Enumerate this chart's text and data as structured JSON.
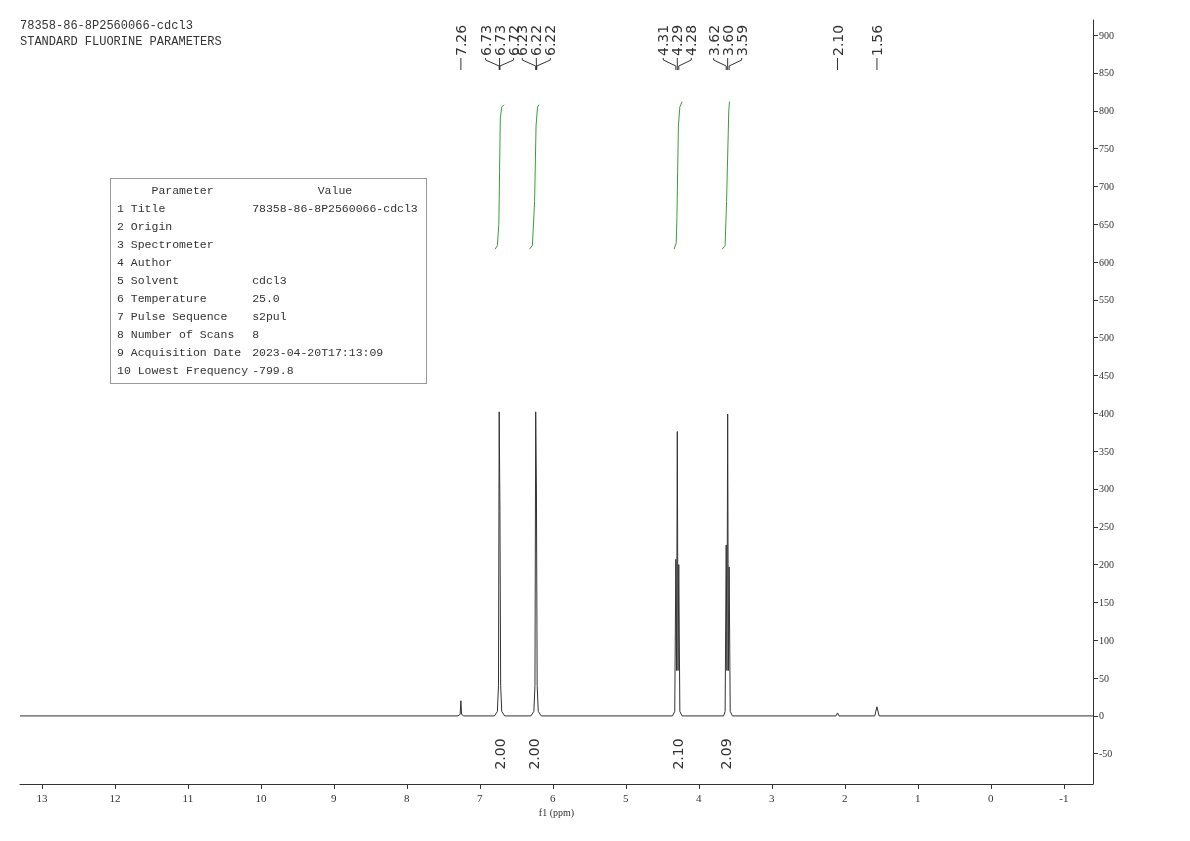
{
  "chart_data": [
    {
      "type": "line",
      "title": "78358-86-8P2560066-cdcl3",
      "subtitle": "STANDARD FLUORINE PARAMETERS",
      "xlabel": "f1 (ppm)",
      "xlim": [
        13.3,
        -1.4
      ],
      "xticks": [
        13,
        12,
        11,
        10,
        9,
        8,
        7,
        6,
        5,
        4,
        3,
        2,
        1,
        0,
        -1
      ],
      "ylim": [
        -90,
        920
      ],
      "yticks": [
        -50,
        0,
        50,
        100,
        150,
        200,
        250,
        300,
        350,
        400,
        450,
        500,
        550,
        600,
        650,
        700,
        750,
        800,
        850,
        900
      ],
      "marker": "none",
      "series": [
        {
          "color": "#333333",
          "x": [
            13.3,
            7.3,
            7.27,
            7.26,
            7.25,
            7.22,
            6.8,
            6.76,
            6.745,
            6.735,
            6.725,
            6.715,
            6.7,
            6.66,
            6.3,
            6.26,
            6.245,
            6.235,
            6.225,
            6.215,
            6.2,
            6.16,
            4.36,
            4.33,
            4.315,
            4.305,
            4.295,
            4.285,
            4.275,
            4.26,
            4.23,
            3.66,
            3.64,
            3.625,
            3.615,
            3.605,
            3.595,
            3.585,
            3.57,
            3.54,
            2.12,
            2.1,
            2.08,
            1.59,
            1.56,
            1.53,
            -1.4
          ],
          "values": [
            0,
            0,
            2,
            20,
            2,
            0,
            0,
            6,
            40,
            402,
            270,
            40,
            6,
            0,
            0,
            6,
            40,
            402,
            300,
            40,
            6,
            0,
            0,
            6,
            207,
            60,
            376,
            60,
            200,
            6,
            0,
            0,
            6,
            226,
            60,
            399,
            60,
            197,
            6,
            0,
            0,
            4,
            0,
            0,
            12,
            0,
            0
          ]
        },
        {
          "type": "line",
          "color": "#3c9c3c",
          "x": [
            6.79,
            6.76,
            6.74,
            6.73,
            6.72,
            6.7,
            6.67
          ],
          "values": [
            617,
            622,
            650,
            720,
            790,
            805,
            808
          ]
        },
        {
          "type": "line",
          "color": "#3c9c3c",
          "x": [
            6.32,
            6.28,
            6.25,
            6.23,
            6.21,
            6.19
          ],
          "values": [
            617,
            622,
            680,
            780,
            805,
            808
          ]
        },
        {
          "type": "line",
          "color": "#3c9c3c",
          "x": [
            4.34,
            4.31,
            4.3,
            4.29,
            4.28,
            4.26,
            4.23
          ],
          "values": [
            617,
            625,
            660,
            720,
            780,
            805,
            812
          ]
        },
        {
          "type": "line",
          "color": "#3c9c3c",
          "x": [
            3.68,
            3.64,
            3.62,
            3.6,
            3.59,
            3.58
          ],
          "values": [
            617,
            622,
            680,
            760,
            800,
            812
          ]
        }
      ],
      "annotations": [
        {
          "text": "7.26",
          "x": 7.26
        },
        {
          "text": "6.73",
          "x": 6.735
        },
        {
          "text": "6.73",
          "x": 6.73
        },
        {
          "text": "6.72",
          "x": 6.725
        },
        {
          "text": "6.23",
          "x": 6.235
        },
        {
          "text": "6.22",
          "x": 6.225
        },
        {
          "text": "6.22",
          "x": 6.22
        },
        {
          "text": "4.31",
          "x": 4.315
        },
        {
          "text": "4.29",
          "x": 4.295
        },
        {
          "text": "4.28",
          "x": 4.275
        },
        {
          "text": "3.62",
          "x": 3.625
        },
        {
          "text": "3.60",
          "x": 3.605
        },
        {
          "text": "3.59",
          "x": 3.585
        },
        {
          "text": "2.10",
          "x": 2.1
        },
        {
          "text": "1.56",
          "x": 1.56
        },
        "2.00",
        "2.00",
        "2.10",
        "2.09"
      ]
    },
    {
      "type": "other",
      "annotations": [
        "Parameter",
        "Value"
      ],
      "categories": [
        "1 Title",
        "2 Origin",
        "3 Spectrometer",
        "4 Author",
        "5 Solvent",
        "6 Temperature",
        "7 Pulse Sequence",
        "8 Number of Scans",
        "9 Acquisition Date",
        "10 Lowest Frequency"
      ],
      "value_labels": [
        "78358-86-8P2560066-cdcl3",
        null,
        null,
        null,
        "cdcl3",
        "25.0",
        "s2pul",
        "8",
        "2023-04-20T17:13:09",
        "-799.8"
      ]
    }
  ]
}
